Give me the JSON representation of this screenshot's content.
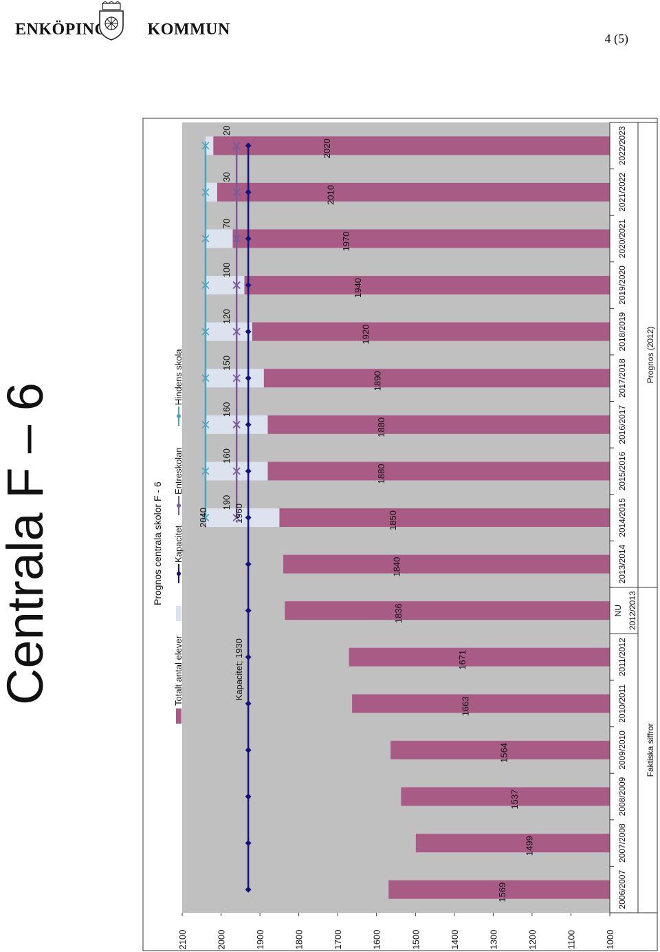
{
  "header": {
    "logo_left": "ENKÖPINGS",
    "logo_right": "KOMMUN",
    "page_number": "4 (5)"
  },
  "slide_title": "Centrala F – 6",
  "chart_data": {
    "type": "bar",
    "title": "Prognos centrala skolor F - 6",
    "categories": [
      "2006/2007",
      "2007/2008",
      "2008/2009",
      "2009/2010",
      "2010/2011",
      "2011/2012",
      "2012/2013",
      "2013/2014",
      "2014/2015",
      "2015/2016",
      "2016/2017",
      "2017/2018",
      "2018/2019",
      "2019/2020",
      "2020/2021",
      "2021/2022",
      "2022/2023"
    ],
    "category_labels": [
      [
        "2006/2007"
      ],
      [
        "2007/2008"
      ],
      [
        "2008/2009"
      ],
      [
        "2009/2010"
      ],
      [
        "2010/2011"
      ],
      [
        "2011/2012"
      ],
      [
        "NU",
        "2012/2013"
      ],
      [
        "2013/2014"
      ],
      [
        "2014/2015"
      ],
      [
        "2015/2016"
      ],
      [
        "2016/2017"
      ],
      [
        "2017/2018"
      ],
      [
        "2018/2019"
      ],
      [
        "2019/2020"
      ],
      [
        "2020/2021"
      ],
      [
        "2021/2022"
      ],
      [
        "2022/2023"
      ]
    ],
    "group_labels": [
      {
        "label": "Faktiska siffror",
        "from": 0,
        "to": 6
      },
      {
        "label": "Prognos (2012)",
        "from": 7,
        "to": 16
      }
    ],
    "y_ticks": [
      "1000",
      "1100",
      "1200",
      "1300",
      "1400",
      "1500",
      "1600",
      "1700",
      "1800",
      "1900",
      "2000",
      "2100"
    ],
    "ylim": [
      1000,
      2100
    ],
    "series": [
      {
        "name": "Totalt antal elever",
        "kind": "bar",
        "color": "#a85c85",
        "values": [
          1569,
          1499,
          1537,
          1564,
          1663,
          1671,
          1836,
          1840,
          1850,
          1880,
          1880,
          1890,
          1920,
          1940,
          1970,
          2010,
          2020
        ]
      },
      {
        "name": "",
        "kind": "stacked-bar",
        "color": "#dce3ee",
        "values": [
          null,
          null,
          null,
          null,
          null,
          null,
          null,
          null,
          190,
          160,
          160,
          150,
          120,
          100,
          70,
          30,
          20
        ]
      },
      {
        "name": "Kapacitet",
        "kind": "line",
        "color": "#13127c",
        "marker": "diamond",
        "values": [
          1930,
          1930,
          1930,
          1930,
          1930,
          1930,
          1930,
          1930,
          1930,
          1930,
          1930,
          1930,
          1930,
          1930,
          1930,
          1930,
          1930
        ]
      },
      {
        "name": "Entreskolan",
        "kind": "line",
        "color": "#7a5a99",
        "marker": "x",
        "values": [
          null,
          null,
          null,
          null,
          null,
          null,
          null,
          null,
          1960,
          1960,
          1960,
          1960,
          1960,
          1960,
          1960,
          1960,
          1960
        ]
      },
      {
        "name": "Hindens skola",
        "kind": "line",
        "color": "#4aa3c0",
        "marker": "asterisk",
        "values": [
          null,
          null,
          null,
          null,
          null,
          null,
          null,
          null,
          2040,
          2040,
          2040,
          2040,
          2040,
          2040,
          2040,
          2040,
          2040
        ]
      }
    ],
    "bar_labels": [
      "1569",
      "1499",
      "1537",
      "1564",
      "1663",
      "1671",
      "1836",
      "1840",
      "1850",
      "1880",
      "1880",
      "1890",
      "1920",
      "1940",
      "1970",
      "2010",
      "2020"
    ],
    "stack_labels": [
      "",
      "",
      "",
      "",
      "",
      "",
      "",
      "",
      "190",
      "160",
      "160",
      "150",
      "120",
      "100",
      "70",
      "30",
      "20"
    ],
    "annotations": [
      {
        "text": "Kapacitet; 1930",
        "category": 5,
        "y": 1930
      },
      {
        "text": "1960",
        "category": 8,
        "y": 1960
      },
      {
        "text": "2040",
        "category": 8,
        "y": 2040
      }
    ],
    "legend": {
      "placement": "top",
      "items": [
        {
          "label": "Totalt antal elever",
          "kind": "swatch",
          "color": "#a85c85"
        },
        {
          "label": "",
          "kind": "swatch",
          "color": "#dce3ee"
        },
        {
          "label": "Kapacitet",
          "kind": "line",
          "color": "#13127c"
        },
        {
          "label": "Entreskolan",
          "kind": "line",
          "color": "#7a5a99"
        },
        {
          "label": "Hindens skola",
          "kind": "line",
          "color": "#4aa3c0"
        }
      ]
    },
    "colors": {
      "plot_bg": "#c0c0c0",
      "frame": "#333333"
    }
  }
}
